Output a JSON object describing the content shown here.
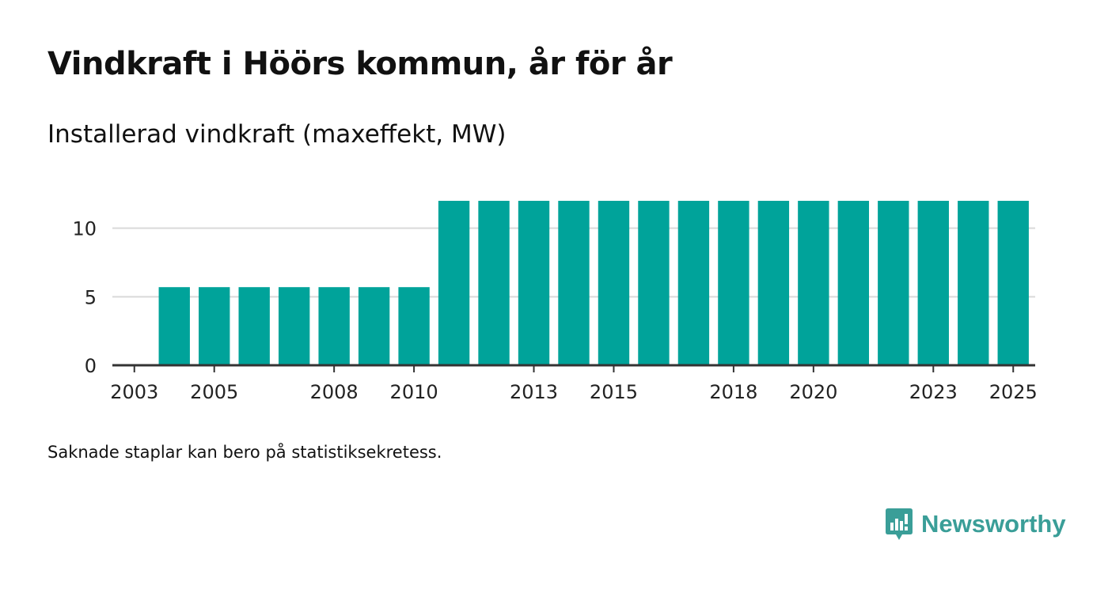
{
  "page": {
    "title": "Vindkraft i Höörs kommun, år för år",
    "subtitle": "Installerad vindkraft (maxeffekt, MW)",
    "footnote": "Saknade staplar kan bero på statistiksekretess.",
    "brand": "Newsworthy",
    "brand_icon": "newsworthy-logo-icon"
  },
  "colors": {
    "bar": "#00a39a",
    "grid": "#d9d9d9",
    "axis": "#333333",
    "brand": "#3a9e98",
    "text": "#111111"
  },
  "chart_data": {
    "type": "bar",
    "title": "Vindkraft i Höörs kommun, år för år",
    "subtitle": "Installerad vindkraft (maxeffekt, MW)",
    "xlabel": "",
    "ylabel": "Installerad vindkraft (maxeffekt, MW)",
    "categories": [
      "2003",
      "2004",
      "2005",
      "2006",
      "2007",
      "2008",
      "2009",
      "2010",
      "2011",
      "2012",
      "2013",
      "2014",
      "2015",
      "2016",
      "2017",
      "2018",
      "2019",
      "2020",
      "2021",
      "2022",
      "2023",
      "2024",
      "2025"
    ],
    "values": [
      null,
      5.7,
      5.7,
      5.7,
      5.7,
      5.7,
      5.7,
      5.7,
      12,
      12,
      12,
      12,
      12,
      12,
      12,
      12,
      12,
      12,
      12,
      12,
      12,
      12,
      12
    ],
    "xtick_labels": [
      "2003",
      "2005",
      "2008",
      "2010",
      "2013",
      "2015",
      "2018",
      "2020",
      "2023",
      "2025"
    ],
    "yticks": [
      0,
      5,
      10
    ],
    "ylim": [
      0,
      12
    ],
    "grid": true,
    "legend": "none"
  }
}
